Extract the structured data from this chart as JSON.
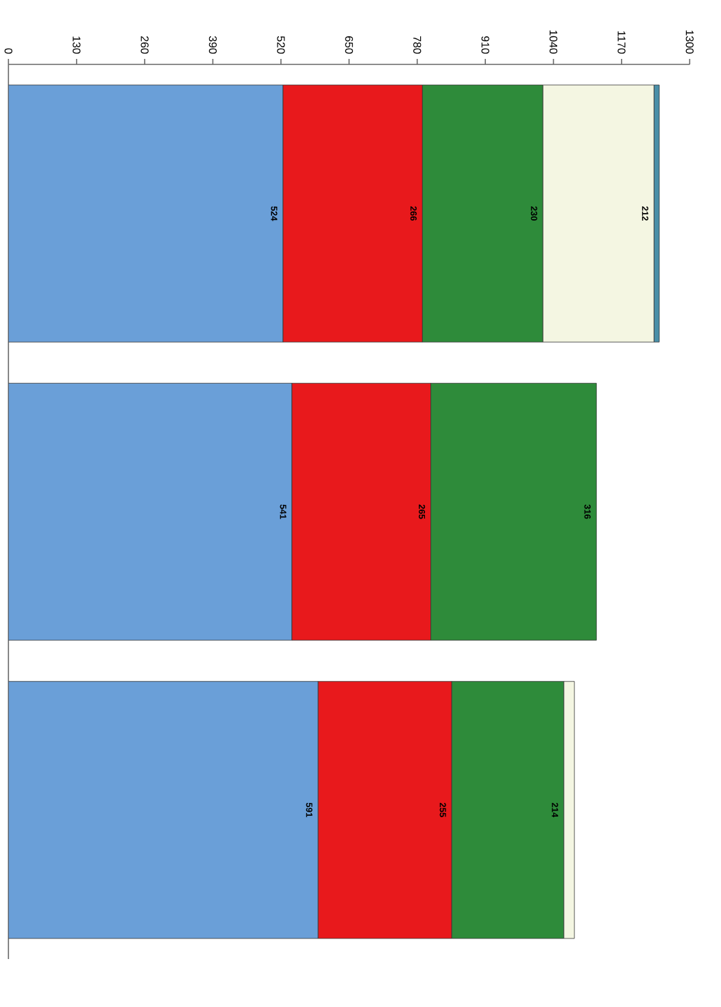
{
  "chart_data": {
    "type": "bar",
    "orientation": "horizontal",
    "stacked": true,
    "categories": [
      null,
      null,
      null
    ],
    "xlim": [
      0,
      1300
    ],
    "xticks": [
      0,
      130,
      260,
      390,
      520,
      650,
      780,
      910,
      1040,
      1170,
      1300
    ],
    "series": [
      {
        "color": "#6a9fd8",
        "values": [
          524,
          541,
          591
        ],
        "value_labels": [
          "524",
          "541",
          "591"
        ]
      },
      {
        "color": "#e8191c",
        "values": [
          266,
          265,
          255
        ],
        "value_labels": [
          "266",
          "265",
          "255"
        ]
      },
      {
        "color": "#2e8b3a",
        "values": [
          230,
          316,
          214
        ],
        "value_labels": [
          "230",
          "316",
          "214"
        ]
      },
      {
        "color": "#f4f6e2",
        "values": [
          212,
          null,
          20
        ],
        "value_labels": [
          "212",
          null,
          null
        ]
      },
      {
        "color": "#4a8fa8",
        "values": [
          10,
          null,
          null
        ]
      }
    ],
    "marker": "none"
  }
}
